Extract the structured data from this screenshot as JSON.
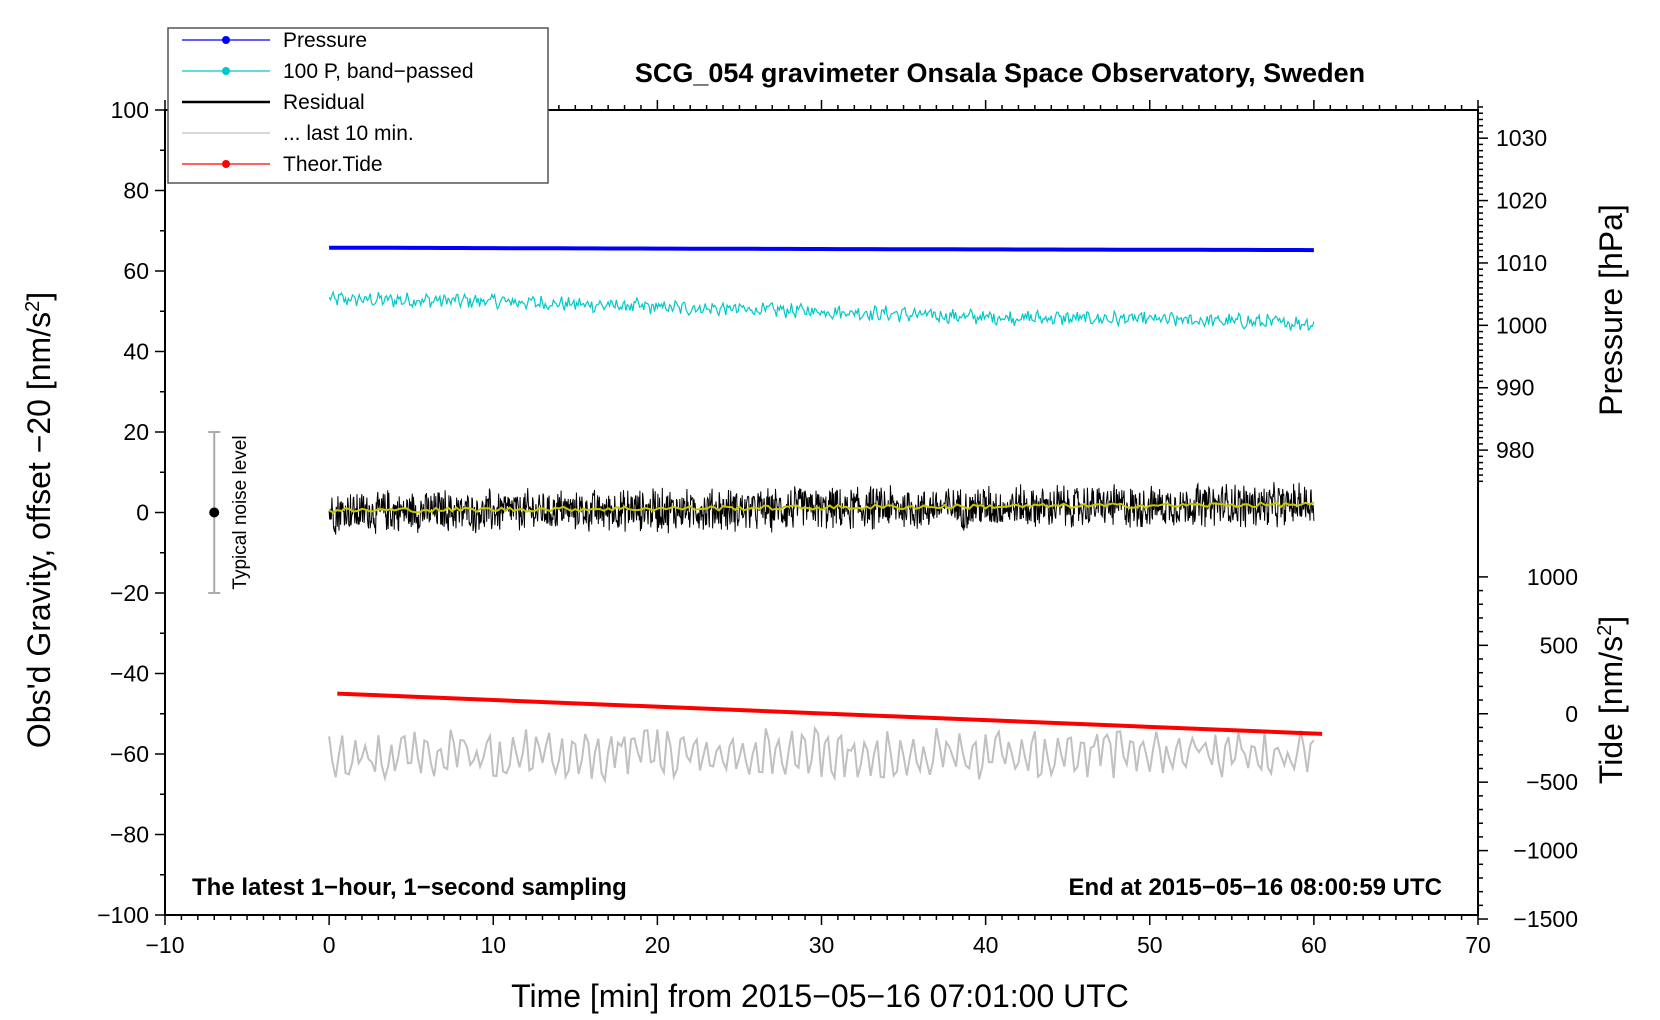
{
  "chart_data": {
    "type": "line",
    "title": "SCG_054 gravimeter Onsala Space Observatory, Sweden",
    "xlabel": "Time [min] from 2015−05−16 07:01:00 UTC",
    "ylabel": "Obs'd Gravity, offset −20 [nm/s²]",
    "ylabel_parts": [
      "Obs'd Gravity, offset −20 [nm/s",
      "2",
      "]"
    ],
    "xlim": [
      -10,
      70
    ],
    "ylim": [
      -100,
      100
    ],
    "x_ticks": [
      "−10",
      "0",
      "10",
      "20",
      "30",
      "40",
      "50",
      "60",
      "70"
    ],
    "x_tick_values": [
      -10,
      0,
      10,
      20,
      30,
      40,
      50,
      60,
      70
    ],
    "y_ticks": [
      "−100",
      "−80",
      "−60",
      "−40",
      "−20",
      "0",
      "20",
      "40",
      "60",
      "80",
      "100"
    ],
    "y_tick_values": [
      -100,
      -80,
      -60,
      -40,
      -20,
      0,
      20,
      40,
      60,
      80,
      100
    ],
    "pressure_axis": {
      "label": "Pressure [hPa]",
      "ticks": [
        "980",
        "990",
        "1000",
        "1010",
        "1020",
        "1030"
      ],
      "values": [
        980,
        990,
        1000,
        1010,
        1020,
        1030
      ],
      "gravity_equivalent_of_1000": 46.5,
      "gravity_per_10hPa": 15.5
    },
    "tide_axis": {
      "label_parts": [
        "Tide [nm/s",
        "2",
        "]"
      ],
      "ticks": [
        "−1500",
        "−1000",
        "−500",
        "0",
        "500",
        "1000"
      ],
      "values": [
        -1500,
        -1000,
        -500,
        0,
        500,
        1000
      ],
      "gravity_equivalent_of_0": -50,
      "gravity_per_500": 17
    },
    "grid": false,
    "legend_position": "top-left",
    "series": [
      {
        "name": "Pressure",
        "color": "#0000ff",
        "marker": "dot",
        "x": [
          0,
          17,
          36,
          60
        ],
        "y": [
          65.8,
          65.6,
          65.4,
          65.2
        ]
      },
      {
        "name": "100 P, band−passed",
        "color": "#00c8c8",
        "marker": "dot",
        "x": [
          0,
          10,
          20,
          30,
          40,
          50,
          60
        ],
        "y": [
          53,
          52.5,
          51,
          50,
          48.5,
          48,
          47
        ]
      },
      {
        "name": "Residual",
        "color": "#000000",
        "marker": "line",
        "x": [
          0,
          60
        ],
        "y": [
          0,
          2
        ],
        "noise_amplitude": 5
      },
      {
        "name": "... last 10 min.",
        "color": "#c0c0c0",
        "marker": "line",
        "x": [
          0,
          60
        ],
        "y": [
          -60,
          -60
        ],
        "noise_amplitude": 6
      },
      {
        "name": "Theor.Tide",
        "color": "#ff0000",
        "marker": "dot",
        "x": [
          0.5,
          60.5
        ],
        "y": [
          -45,
          -55
        ]
      }
    ],
    "running_mean": {
      "color": "#c8c800",
      "x": [
        0,
        60
      ],
      "y": [
        0.5,
        2
      ]
    },
    "noise_bar": {
      "label": "Typical noise level",
      "x": -7,
      "y": 0,
      "range": [
        -20,
        20
      ]
    },
    "annotations": {
      "bottom_left": "The latest 1−hour, 1−second sampling",
      "bottom_right": "End at 2015−05−16 08:00:59 UTC"
    }
  }
}
